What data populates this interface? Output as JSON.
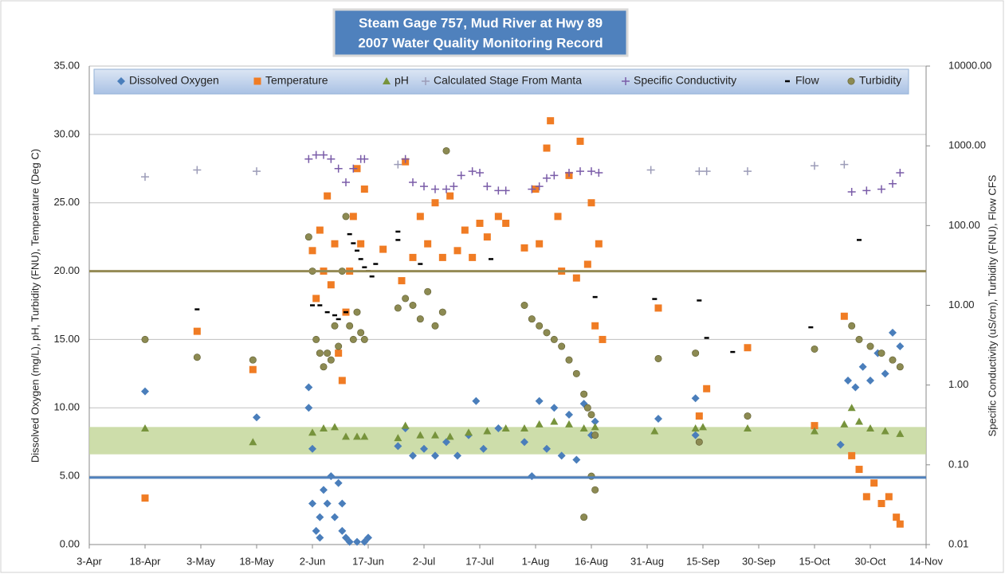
{
  "chart_data": {
    "type": "scatter",
    "title": [
      "Steam Gage 757, Mud River at Hwy 89",
      "2007 Water Quality Monitoring Record"
    ],
    "y_label": "Dissolved Oxygen (mg/L), pH, Turbidity (FNU), Temperature (Deg C)",
    "y2_label": "Specific Conductivity (uS/cm), Turbidity (FNU), Flow CFS",
    "xlim": [
      93,
      318
    ],
    "xticks": [
      {
        "value": 93,
        "label": "3-Apr"
      },
      {
        "value": 108,
        "label": "18-Apr"
      },
      {
        "value": 123,
        "label": "3-May"
      },
      {
        "value": 138,
        "label": "18-May"
      },
      {
        "value": 153,
        "label": "2-Jun"
      },
      {
        "value": 168,
        "label": "17-Jun"
      },
      {
        "value": 183,
        "label": "2-Jul"
      },
      {
        "value": 198,
        "label": "17-Jul"
      },
      {
        "value": 213,
        "label": "1-Aug"
      },
      {
        "value": 228,
        "label": "16-Aug"
      },
      {
        "value": 243,
        "label": "31-Aug"
      },
      {
        "value": 258,
        "label": "15-Sep"
      },
      {
        "value": 273,
        "label": "30-Sep"
      },
      {
        "value": 288,
        "label": "15-Oct"
      },
      {
        "value": 303,
        "label": "30-Oct"
      },
      {
        "value": 318,
        "label": "14-Nov"
      }
    ],
    "ylim": [
      0,
      35
    ],
    "yticks": [
      {
        "value": 0,
        "label": "0.00"
      },
      {
        "value": 5,
        "label": "5.00"
      },
      {
        "value": 10,
        "label": "10.00"
      },
      {
        "value": 15,
        "label": "15.00"
      },
      {
        "value": 20,
        "label": "20.00"
      },
      {
        "value": 25,
        "label": "25.00"
      },
      {
        "value": 30,
        "label": "30.00"
      },
      {
        "value": 35,
        "label": "35.00"
      }
    ],
    "y2lim": [
      0.01,
      10000
    ],
    "y2log": true,
    "y2ticks": [
      {
        "value": 0.01,
        "label": "0.01"
      },
      {
        "value": 0.1,
        "label": "0.10"
      },
      {
        "value": 1,
        "label": "1.00"
      },
      {
        "value": 10,
        "label": "10.00"
      },
      {
        "value": 100,
        "label": "100.00"
      },
      {
        "value": 1000,
        "label": "1000.00"
      },
      {
        "value": 10000,
        "label": "10000.00"
      }
    ],
    "grid": true,
    "legend": "top",
    "reference_lines": [
      {
        "value": 20,
        "color": "#948a54"
      },
      {
        "value": 4.9,
        "color": "#4f81bd"
      }
    ],
    "bands": [
      {
        "from": 6.6,
        "to": 8.6,
        "color": "#c4d79b"
      }
    ],
    "series": [
      {
        "name": "Dissolved Oxygen",
        "color": "#4a7ebb",
        "marker": "diamond",
        "axis": "y",
        "x": [
          108,
          138,
          152,
          152,
          153,
          153,
          154,
          155,
          155,
          156,
          157,
          158,
          159,
          160,
          161,
          161,
          162,
          163,
          165,
          167,
          168,
          176,
          178,
          180,
          183,
          186,
          189,
          192,
          195,
          197,
          199,
          203,
          210,
          212,
          214,
          216,
          218,
          220,
          222,
          224,
          226,
          228,
          229,
          246,
          256,
          256,
          295,
          297,
          299,
          301,
          303,
          305,
          307,
          309,
          311
        ],
        "values": [
          11.2,
          9.3,
          11.5,
          10,
          7,
          3,
          1,
          2,
          0.5,
          4,
          3,
          5,
          2,
          4.5,
          3,
          1,
          0.5,
          0.2,
          0.2,
          0.2,
          0.5,
          7.2,
          8.5,
          6.5,
          7,
          6.5,
          7.5,
          6.5,
          8,
          10.5,
          7,
          8.5,
          7.5,
          5,
          10.5,
          7,
          10,
          6.5,
          9.5,
          6.2,
          10.3,
          8,
          9,
          9.2,
          10.7,
          8,
          7.3,
          12,
          11.5,
          13,
          12,
          14,
          12.5,
          15.5,
          14.5
        ]
      },
      {
        "name": "Temperature",
        "color": "#f07c24",
        "marker": "square",
        "axis": "y",
        "x": [
          108,
          122,
          137,
          153,
          154,
          155,
          156,
          157,
          158,
          159,
          160,
          161,
          162,
          163,
          164,
          165,
          166,
          167,
          172,
          177,
          178,
          180,
          182,
          184,
          186,
          188,
          190,
          192,
          194,
          196,
          198,
          200,
          203,
          205,
          210,
          213,
          214,
          216,
          217,
          219,
          220,
          222,
          224,
          225,
          227,
          228,
          229,
          230,
          231,
          246,
          257,
          259,
          270,
          288,
          296,
          298,
          300,
          302,
          304,
          306,
          308,
          310,
          311
        ],
        "values": [
          3.4,
          15.6,
          12.8,
          21.5,
          18,
          23,
          20,
          25.5,
          19,
          22,
          14,
          12,
          17,
          20,
          24,
          27.5,
          22,
          26,
          21.6,
          19.3,
          28,
          21,
          24,
          22,
          25,
          21,
          25.5,
          21.5,
          23,
          21,
          23.5,
          22.5,
          24,
          23.5,
          21.7,
          26,
          22,
          29,
          31,
          24,
          20,
          27,
          19.5,
          29.5,
          20.5,
          25,
          16,
          22,
          15,
          17.3,
          9.4,
          11.4,
          14.4,
          8.7,
          16.7,
          6.5,
          5.5,
          3.5,
          4.5,
          3,
          3.5,
          2,
          1.5
        ]
      },
      {
        "name": "pH",
        "color": "#77933c",
        "marker": "triangle",
        "axis": "y",
        "x": [
          108,
          137,
          153,
          156,
          159,
          162,
          165,
          167,
          176,
          178,
          182,
          186,
          190,
          195,
          200,
          205,
          210,
          214,
          218,
          222,
          226,
          229,
          245,
          256,
          258,
          270,
          288,
          296,
          298,
          300,
          303,
          307,
          311
        ],
        "values": [
          8.5,
          7.5,
          8.2,
          8.5,
          8.6,
          7.9,
          7.9,
          7.9,
          7.8,
          8.7,
          8,
          8,
          7.9,
          8.2,
          8.3,
          8.5,
          8.5,
          8.8,
          9,
          8.8,
          8.5,
          8.6,
          8.3,
          8.5,
          8.6,
          8.5,
          8.3,
          8.8,
          10,
          9,
          8.5,
          8.3,
          8.1
        ]
      },
      {
        "name": "Calculated Stage From Manta",
        "color": "#9c9cb8",
        "marker": "plus",
        "axis": "y2",
        "x": [
          108,
          122,
          138,
          176,
          244,
          257,
          259,
          270,
          288,
          296
        ],
        "values": [
          408,
          498,
          480,
          583,
          498,
          480,
          480,
          480,
          561,
          583
        ]
      },
      {
        "name": "Specific Conductivity",
        "color": "#7a5ca8",
        "marker": "plus",
        "axis": "y2",
        "x": [
          152,
          154,
          156,
          158,
          160,
          162,
          164,
          166,
          167,
          178,
          180,
          183,
          186,
          189,
          191,
          193,
          196,
          198,
          200,
          203,
          205,
          212,
          214,
          216,
          218,
          222,
          225,
          228,
          230,
          298,
          302,
          306,
          309,
          311
        ],
        "values": [
          683,
          769,
          769,
          683,
          518,
          349,
          518,
          683,
          683,
          683,
          349,
          310,
          286,
          286,
          310,
          425,
          480,
          460,
          310,
          275,
          275,
          286,
          310,
          393,
          425,
          460,
          480,
          480,
          460,
          265,
          275,
          286,
          335,
          460
        ]
      },
      {
        "name": "Flow",
        "color": "#000000",
        "marker": "dash",
        "axis": "y2",
        "x": [
          122,
          153,
          155,
          157,
          159,
          160,
          162,
          163,
          164,
          165,
          166,
          167,
          168,
          169,
          170,
          176,
          176,
          182,
          201,
          229,
          245,
          257,
          259,
          266,
          287,
          300
        ],
        "values": [
          8.9,
          10,
          10,
          8.2,
          7.5,
          6.7,
          8.2,
          78,
          60,
          48.5,
          38,
          30,
          27,
          23,
          33,
          84,
          66,
          33,
          38,
          12.7,
          12,
          11.5,
          3.9,
          2.6,
          5.3,
          66
        ]
      },
      {
        "name": "Turbidity",
        "color": "#8c8a52",
        "marker": "circle",
        "axis": "y",
        "x": [
          108,
          122,
          137,
          152,
          153,
          154,
          155,
          156,
          157,
          158,
          159,
          160,
          161,
          162,
          163,
          164,
          165,
          166,
          167,
          176,
          178,
          180,
          182,
          184,
          186,
          188,
          189,
          210,
          212,
          214,
          216,
          218,
          220,
          222,
          224,
          226,
          227,
          228,
          229,
          228,
          229,
          226,
          246,
          256,
          257,
          270,
          288,
          298,
          300,
          303,
          306,
          309,
          311
        ],
        "values": [
          15,
          13.7,
          13.5,
          22.5,
          20,
          15,
          14,
          13,
          14,
          13.5,
          16,
          14.5,
          20,
          24,
          16,
          15,
          17,
          15.5,
          15,
          17.3,
          18,
          17.5,
          16.5,
          18.5,
          16,
          17,
          28.8,
          17.5,
          16.5,
          16,
          15.5,
          15,
          14.5,
          13.5,
          12.5,
          11,
          10,
          9.5,
          8,
          5,
          4,
          2,
          13.6,
          14,
          7.5,
          9.4,
          14.3,
          16,
          15,
          14.5,
          14,
          13.5,
          13
        ]
      }
    ]
  }
}
